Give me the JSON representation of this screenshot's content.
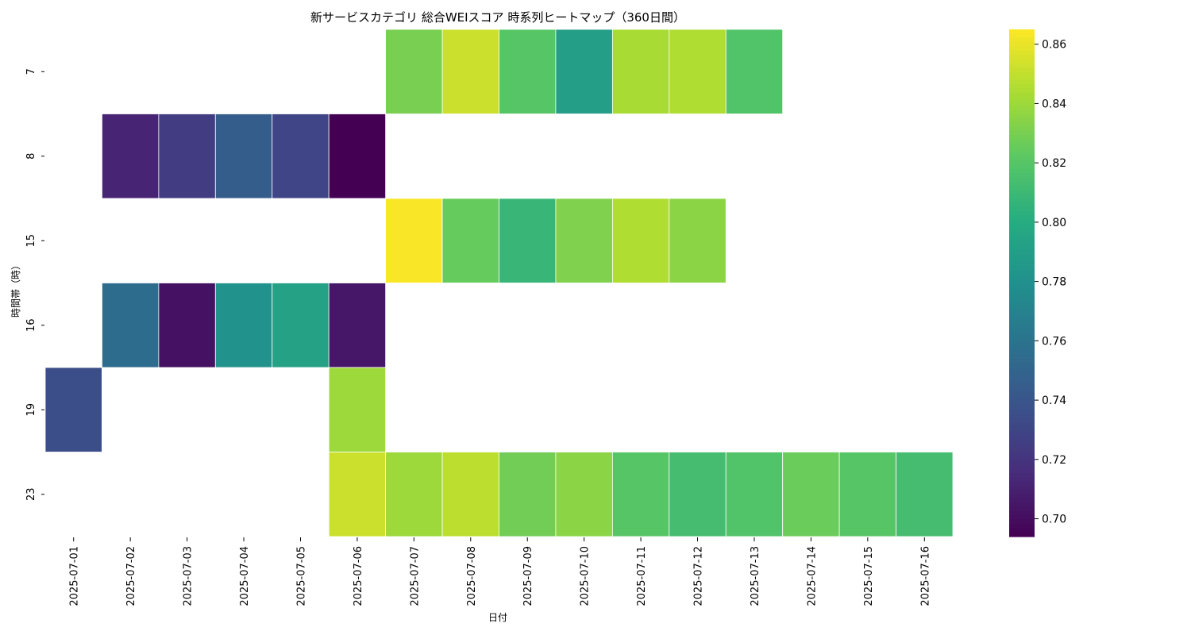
{
  "chart_data": {
    "type": "heatmap",
    "title": "新サービスカテゴリ 総合WEIスコア 時系列ヒートマップ（360日間）",
    "xlabel": "日付",
    "ylabel": "時間帯（時）",
    "x": [
      "2025-07-01",
      "2025-07-02",
      "2025-07-03",
      "2025-07-04",
      "2025-07-05",
      "2025-07-06",
      "2025-07-07",
      "2025-07-08",
      "2025-07-09",
      "2025-07-10",
      "2025-07-11",
      "2025-07-12",
      "2025-07-13",
      "2025-07-14",
      "2025-07-15",
      "2025-07-16"
    ],
    "y": [
      "7",
      "8",
      "15",
      "16",
      "19",
      "23"
    ],
    "values": [
      [
        null,
        null,
        null,
        null,
        null,
        null,
        0.83,
        0.852,
        0.82,
        0.79,
        0.843,
        0.845,
        0.818,
        null,
        null,
        null
      ],
      [
        null,
        0.712,
        0.725,
        0.745,
        0.73,
        0.694,
        null,
        null,
        null,
        null,
        null,
        null,
        null,
        null,
        null,
        null
      ],
      [
        null,
        null,
        null,
        null,
        null,
        null,
        0.864,
        0.825,
        0.808,
        0.832,
        0.845,
        0.835,
        null,
        null,
        null,
        null
      ],
      [
        null,
        0.755,
        0.702,
        0.782,
        0.792,
        0.705,
        null,
        null,
        null,
        null,
        null,
        null,
        null,
        null,
        null,
        null
      ],
      [
        0.735,
        null,
        null,
        null,
        null,
        0.84,
        null,
        null,
        null,
        null,
        null,
        null,
        null,
        null,
        null,
        null
      ],
      [
        null,
        null,
        null,
        null,
        null,
        0.852,
        0.84,
        0.848,
        0.828,
        0.835,
        0.82,
        0.813,
        0.818,
        0.826,
        0.82,
        0.813
      ]
    ],
    "colorscale": "viridis",
    "vmin": 0.694,
    "vmax": 0.865,
    "colorbar_ticks": [
      "0.70",
      "0.72",
      "0.74",
      "0.76",
      "0.78",
      "0.80",
      "0.82",
      "0.84",
      "0.86"
    ],
    "grid": false,
    "legend": "colorbar-right"
  }
}
